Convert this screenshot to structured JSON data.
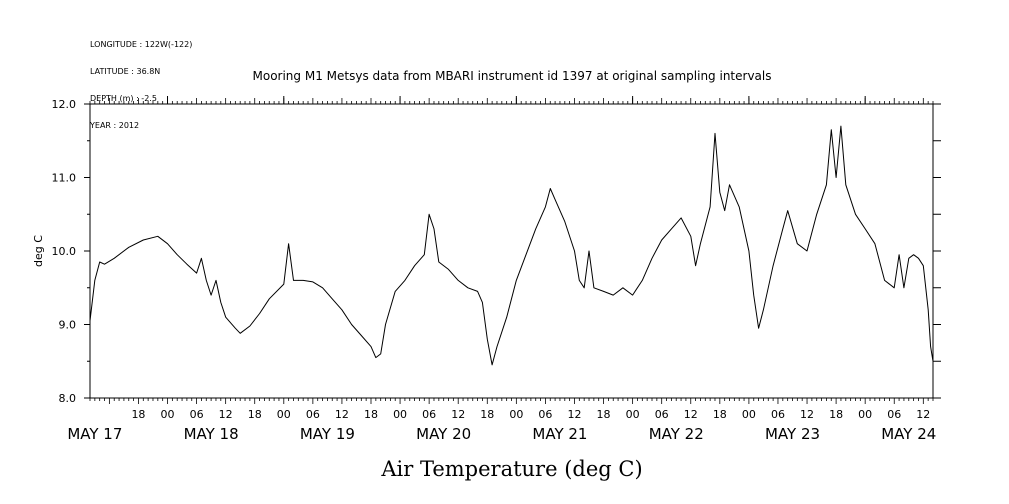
{
  "header": {
    "longitude": "LONGITUDE : 122W(-122)",
    "latitude": "LATITUDE : 36.8N",
    "depth": "DEPTH (m) : -2.5",
    "year": "YEAR : 2012"
  },
  "chart_data": {
    "type": "line",
    "title": "Mooring M1 Metsys data from MBARI instrument id 1397 at original sampling intervals",
    "xlabel": "Air Temperature (deg C)",
    "ylabel": "deg C",
    "ylim": [
      8.0,
      12.0
    ],
    "y_ticks": [
      "8.0",
      "9.0",
      "10.0",
      "11.0",
      "12.0"
    ],
    "xlim": [
      "2012-05-17 08:00",
      "2012-05-24 14:00"
    ],
    "hour_ticks": [
      {
        "t": "2012-05-17 18:00",
        "label": "18"
      },
      {
        "t": "2012-05-18 00:00",
        "label": "00"
      },
      {
        "t": "2012-05-18 06:00",
        "label": "06"
      },
      {
        "t": "2012-05-18 12:00",
        "label": "12"
      },
      {
        "t": "2012-05-18 18:00",
        "label": "18"
      },
      {
        "t": "2012-05-19 00:00",
        "label": "00"
      },
      {
        "t": "2012-05-19 06:00",
        "label": "06"
      },
      {
        "t": "2012-05-19 12:00",
        "label": "12"
      },
      {
        "t": "2012-05-19 18:00",
        "label": "18"
      },
      {
        "t": "2012-05-20 00:00",
        "label": "00"
      },
      {
        "t": "2012-05-20 06:00",
        "label": "06"
      },
      {
        "t": "2012-05-20 12:00",
        "label": "12"
      },
      {
        "t": "2012-05-20 18:00",
        "label": "18"
      },
      {
        "t": "2012-05-21 00:00",
        "label": "00"
      },
      {
        "t": "2012-05-21 06:00",
        "label": "06"
      },
      {
        "t": "2012-05-21 12:00",
        "label": "12"
      },
      {
        "t": "2012-05-21 18:00",
        "label": "18"
      },
      {
        "t": "2012-05-22 00:00",
        "label": "00"
      },
      {
        "t": "2012-05-22 06:00",
        "label": "06"
      },
      {
        "t": "2012-05-22 12:00",
        "label": "12"
      },
      {
        "t": "2012-05-22 18:00",
        "label": "18"
      },
      {
        "t": "2012-05-23 00:00",
        "label": "00"
      },
      {
        "t": "2012-05-23 06:00",
        "label": "06"
      },
      {
        "t": "2012-05-23 12:00",
        "label": "12"
      },
      {
        "t": "2012-05-23 18:00",
        "label": "18"
      },
      {
        "t": "2012-05-24 00:00",
        "label": "00"
      },
      {
        "t": "2012-05-24 06:00",
        "label": "06"
      },
      {
        "t": "2012-05-24 12:00",
        "label": "12"
      }
    ],
    "day_labels": [
      {
        "t": "2012-05-17 09:00",
        "label": "MAY 17"
      },
      {
        "t": "2012-05-18 09:00",
        "label": "MAY 18"
      },
      {
        "t": "2012-05-19 09:00",
        "label": "MAY 19"
      },
      {
        "t": "2012-05-20 09:00",
        "label": "MAY 20"
      },
      {
        "t": "2012-05-21 09:00",
        "label": "MAY 21"
      },
      {
        "t": "2012-05-22 09:00",
        "label": "MAY 22"
      },
      {
        "t": "2012-05-23 09:00",
        "label": "MAY 23"
      },
      {
        "t": "2012-05-24 09:00",
        "label": "MAY 24"
      }
    ],
    "series": [
      {
        "points": [
          [
            "2012-05-17 08:00",
            9.05
          ],
          [
            "2012-05-17 09:00",
            9.6
          ],
          [
            "2012-05-17 10:00",
            9.85
          ],
          [
            "2012-05-17 11:00",
            9.82
          ],
          [
            "2012-05-17 13:00",
            9.9
          ],
          [
            "2012-05-17 16:00",
            10.05
          ],
          [
            "2012-05-17 19:00",
            10.15
          ],
          [
            "2012-05-17 22:00",
            10.2
          ],
          [
            "2012-05-18 00:00",
            10.1
          ],
          [
            "2012-05-18 02:00",
            9.95
          ],
          [
            "2012-05-18 04:00",
            9.82
          ],
          [
            "2012-05-18 06:00",
            9.7
          ],
          [
            "2012-05-18 07:00",
            9.9
          ],
          [
            "2012-05-18 08:00",
            9.6
          ],
          [
            "2012-05-18 09:00",
            9.4
          ],
          [
            "2012-05-18 10:00",
            9.6
          ],
          [
            "2012-05-18 11:00",
            9.3
          ],
          [
            "2012-05-18 12:00",
            9.1
          ],
          [
            "2012-05-18 14:00",
            8.95
          ],
          [
            "2012-05-18 15:00",
            8.88
          ],
          [
            "2012-05-18 17:00",
            8.98
          ],
          [
            "2012-05-18 19:00",
            9.15
          ],
          [
            "2012-05-18 21:00",
            9.35
          ],
          [
            "2012-05-19 00:00",
            9.55
          ],
          [
            "2012-05-19 01:00",
            10.1
          ],
          [
            "2012-05-19 02:00",
            9.6
          ],
          [
            "2012-05-19 04:00",
            9.6
          ],
          [
            "2012-05-19 06:00",
            9.58
          ],
          [
            "2012-05-19 08:00",
            9.5
          ],
          [
            "2012-05-19 10:00",
            9.35
          ],
          [
            "2012-05-19 12:00",
            9.2
          ],
          [
            "2012-05-19 14:00",
            9.0
          ],
          [
            "2012-05-19 16:00",
            8.85
          ],
          [
            "2012-05-19 18:00",
            8.7
          ],
          [
            "2012-05-19 19:00",
            8.55
          ],
          [
            "2012-05-19 20:00",
            8.6
          ],
          [
            "2012-05-19 21:00",
            9.0
          ],
          [
            "2012-05-19 23:00",
            9.45
          ],
          [
            "2012-05-20 01:00",
            9.6
          ],
          [
            "2012-05-20 03:00",
            9.8
          ],
          [
            "2012-05-20 05:00",
            9.95
          ],
          [
            "2012-05-20 06:00",
            10.5
          ],
          [
            "2012-05-20 07:00",
            10.3
          ],
          [
            "2012-05-20 08:00",
            9.85
          ],
          [
            "2012-05-20 10:00",
            9.75
          ],
          [
            "2012-05-20 12:00",
            9.6
          ],
          [
            "2012-05-20 14:00",
            9.5
          ],
          [
            "2012-05-20 16:00",
            9.45
          ],
          [
            "2012-05-20 17:00",
            9.3
          ],
          [
            "2012-05-20 18:00",
            8.8
          ],
          [
            "2012-05-20 19:00",
            8.45
          ],
          [
            "2012-05-20 20:00",
            8.7
          ],
          [
            "2012-05-20 22:00",
            9.1
          ],
          [
            "2012-05-21 00:00",
            9.6
          ],
          [
            "2012-05-21 02:00",
            9.95
          ],
          [
            "2012-05-21 04:00",
            10.3
          ],
          [
            "2012-05-21 06:00",
            10.6
          ],
          [
            "2012-05-21 07:00",
            10.85
          ],
          [
            "2012-05-21 08:00",
            10.7
          ],
          [
            "2012-05-21 10:00",
            10.4
          ],
          [
            "2012-05-21 12:00",
            10.0
          ],
          [
            "2012-05-21 13:00",
            9.6
          ],
          [
            "2012-05-21 14:00",
            9.5
          ],
          [
            "2012-05-21 15:00",
            10.0
          ],
          [
            "2012-05-21 16:00",
            9.5
          ],
          [
            "2012-05-21 18:00",
            9.45
          ],
          [
            "2012-05-21 20:00",
            9.4
          ],
          [
            "2012-05-21 22:00",
            9.5
          ],
          [
            "2012-05-22 00:00",
            9.4
          ],
          [
            "2012-05-22 02:00",
            9.6
          ],
          [
            "2012-05-22 04:00",
            9.9
          ],
          [
            "2012-05-22 06:00",
            10.15
          ],
          [
            "2012-05-22 08:00",
            10.3
          ],
          [
            "2012-05-22 10:00",
            10.45
          ],
          [
            "2012-05-22 12:00",
            10.2
          ],
          [
            "2012-05-22 13:00",
            9.8
          ],
          [
            "2012-05-22 14:00",
            10.1
          ],
          [
            "2012-05-22 16:00",
            10.6
          ],
          [
            "2012-05-22 17:00",
            11.6
          ],
          [
            "2012-05-22 18:00",
            10.8
          ],
          [
            "2012-05-22 19:00",
            10.55
          ],
          [
            "2012-05-22 20:00",
            10.9
          ],
          [
            "2012-05-22 22:00",
            10.6
          ],
          [
            "2012-05-23 00:00",
            10.0
          ],
          [
            "2012-05-23 01:00",
            9.4
          ],
          [
            "2012-05-23 02:00",
            8.95
          ],
          [
            "2012-05-23 03:00",
            9.2
          ],
          [
            "2012-05-23 05:00",
            9.8
          ],
          [
            "2012-05-23 07:00",
            10.3
          ],
          [
            "2012-05-23 08:00",
            10.55
          ],
          [
            "2012-05-23 10:00",
            10.1
          ],
          [
            "2012-05-23 12:00",
            10.0
          ],
          [
            "2012-05-23 14:00",
            10.5
          ],
          [
            "2012-05-23 16:00",
            10.9
          ],
          [
            "2012-05-23 17:00",
            11.65
          ],
          [
            "2012-05-23 18:00",
            11.0
          ],
          [
            "2012-05-23 19:00",
            11.7
          ],
          [
            "2012-05-23 20:00",
            10.9
          ],
          [
            "2012-05-23 22:00",
            10.5
          ],
          [
            "2012-05-24 00:00",
            10.3
          ],
          [
            "2012-05-24 02:00",
            10.1
          ],
          [
            "2012-05-24 04:00",
            9.6
          ],
          [
            "2012-05-24 06:00",
            9.5
          ],
          [
            "2012-05-24 07:00",
            9.95
          ],
          [
            "2012-05-24 08:00",
            9.5
          ],
          [
            "2012-05-24 09:00",
            9.9
          ],
          [
            "2012-05-24 10:00",
            9.95
          ],
          [
            "2012-05-24 11:00",
            9.9
          ],
          [
            "2012-05-24 12:00",
            9.8
          ],
          [
            "2012-05-24 13:00",
            9.2
          ],
          [
            "2012-05-24 13:30",
            8.7
          ],
          [
            "2012-05-24 14:00",
            8.5
          ]
        ]
      }
    ]
  }
}
